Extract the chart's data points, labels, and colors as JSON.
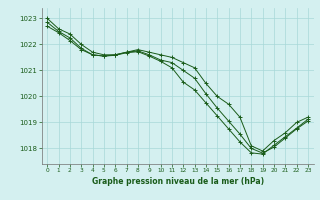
{
  "title": "Graphe pression niveau de la mer (hPa)",
  "background_color": "#d4f0f0",
  "grid_color": "#a8d8d8",
  "line_color": "#1a5c1a",
  "xlim": [
    -0.5,
    23.5
  ],
  "ylim": [
    1017.4,
    1023.4
  ],
  "yticks": [
    1018,
    1019,
    1020,
    1021,
    1022,
    1023
  ],
  "xticks": [
    0,
    1,
    2,
    3,
    4,
    5,
    6,
    7,
    8,
    9,
    10,
    11,
    12,
    13,
    14,
    15,
    16,
    17,
    18,
    19,
    20,
    21,
    22,
    23
  ],
  "line1": [
    1023.0,
    1022.6,
    1022.4,
    1022.0,
    1021.7,
    1021.6,
    1021.6,
    1021.7,
    1021.8,
    1021.7,
    1021.6,
    1021.5,
    1021.3,
    1021.1,
    1020.5,
    1020.0,
    1019.7,
    1019.2,
    1018.1,
    1017.9,
    1018.3,
    1018.6,
    1019.0,
    1019.2
  ],
  "line2": [
    1022.7,
    1022.45,
    1022.15,
    1021.8,
    1021.6,
    1021.55,
    1021.6,
    1021.7,
    1021.75,
    1021.6,
    1021.4,
    1021.3,
    1021.0,
    1020.7,
    1020.1,
    1019.55,
    1019.05,
    1018.55,
    1018.0,
    1017.82,
    1018.05,
    1018.4,
    1018.75,
    1019.05
  ],
  "line3": [
    1022.85,
    1022.5,
    1022.25,
    1021.85,
    1021.6,
    1021.55,
    1021.58,
    1021.68,
    1021.72,
    1021.55,
    1021.35,
    1021.1,
    1020.55,
    1020.25,
    1019.75,
    1019.25,
    1018.75,
    1018.25,
    1017.83,
    1017.78,
    1018.12,
    1018.45,
    1018.78,
    1019.12
  ]
}
